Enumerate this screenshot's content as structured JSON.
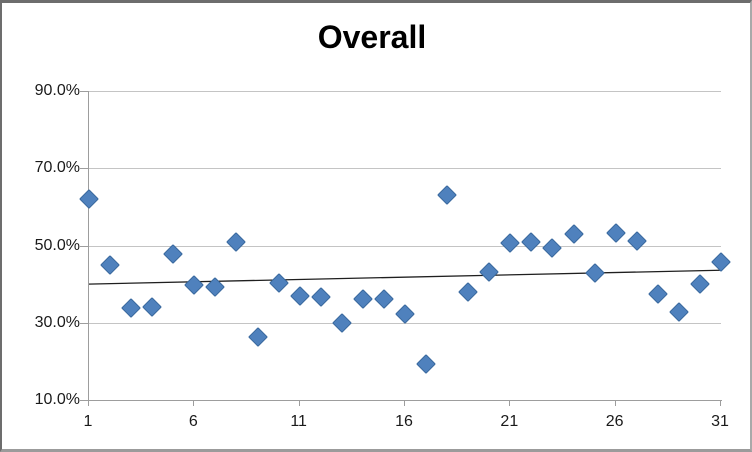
{
  "chart_data": {
    "type": "scatter",
    "title": "Overall",
    "x": [
      1,
      2,
      3,
      4,
      5,
      6,
      7,
      8,
      9,
      10,
      11,
      12,
      13,
      14,
      15,
      16,
      17,
      18,
      19,
      20,
      21,
      22,
      23,
      24,
      25,
      26,
      27,
      28,
      29,
      30,
      31
    ],
    "values": [
      62.3,
      45.2,
      34.2,
      34.3,
      48.0,
      40.0,
      39.5,
      51.1,
      26.5,
      40.5,
      37.2,
      37.0,
      30.3,
      36.4,
      36.3,
      32.4,
      19.7,
      63.3,
      38.1,
      43.4,
      51.0,
      51.2,
      49.5,
      53.3,
      43.2,
      53.6,
      51.4,
      37.7,
      33.0,
      40.3,
      46.0
    ],
    "xlabel": "",
    "ylabel": "",
    "xlim": [
      1,
      31
    ],
    "ylim": [
      10,
      90
    ],
    "x_tick_values": [
      1,
      6,
      11,
      16,
      21,
      26,
      31
    ],
    "y_tick_values": [
      90,
      70,
      50,
      30,
      10
    ],
    "y_tick_labels": [
      "90.0%",
      "70.0%",
      "50.0%",
      "30.0%",
      "10.0%"
    ],
    "grid": true,
    "legend_position": "none",
    "marker": "diamond",
    "trendline": {
      "type": "linear",
      "start": {
        "x": 1,
        "y": 40.0
      },
      "end": {
        "x": 31,
        "y": 43.6
      }
    },
    "colors": {
      "marker_fill": "#4F81BD",
      "marker_border": "#3A699E",
      "gridline": "#C4C4C4",
      "axis": "#9D9D9D",
      "trendline": "#1F1F1F",
      "tick_text": "#1A1A1A",
      "title_text": "#000000",
      "background": "#FFFFFF"
    }
  }
}
